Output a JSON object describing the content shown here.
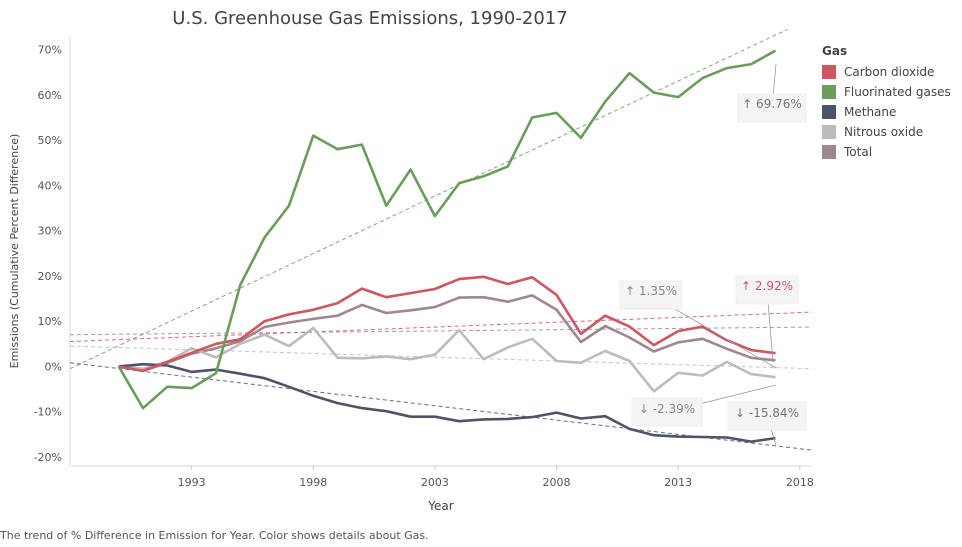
{
  "chart_data": {
    "type": "line",
    "title": "U.S. Greenhouse Gas Emissions, 1990-2017",
    "xlabel": "Year",
    "ylabel": "Emissions (Cumulative Percent Difference)",
    "xlim": [
      1988,
      2018.5
    ],
    "ylim": [
      -22,
      73
    ],
    "x_ticks": [
      1993,
      1998,
      2003,
      2008,
      2013,
      2018
    ],
    "y_ticks": [
      {
        "value": 70,
        "label": "70%"
      },
      {
        "value": 60,
        "label": "60%"
      },
      {
        "value": 50,
        "label": "50%"
      },
      {
        "value": 40,
        "label": "40%"
      },
      {
        "value": 30,
        "label": "30%"
      },
      {
        "value": 20,
        "label": "20%"
      },
      {
        "value": 10,
        "label": "10%"
      },
      {
        "value": 0,
        "label": "0%"
      },
      {
        "value": -10,
        "label": "-10%"
      },
      {
        "value": -20,
        "label": "-20%"
      }
    ],
    "grid": false,
    "legend_title": "Gas",
    "legend_position": "right",
    "x": [
      1990,
      1991,
      1992,
      1993,
      1994,
      1995,
      1996,
      1997,
      1998,
      1999,
      2000,
      2001,
      2002,
      2003,
      2004,
      2005,
      2006,
      2007,
      2008,
      2009,
      2010,
      2011,
      2012,
      2013,
      2014,
      2015,
      2016,
      2017
    ],
    "series": [
      {
        "name": "Carbon dioxide",
        "color": "#d1555f",
        "values": [
          0,
          -1,
          1,
          3,
          5,
          6,
          10,
          11.5,
          12.5,
          14,
          17.2,
          15.3,
          16.2,
          17.1,
          19.3,
          19.8,
          18.2,
          19.7,
          15.8,
          7.2,
          11.2,
          8.8,
          4.7,
          7.8,
          8.8,
          5.8,
          3.6,
          2.92
        ]
      },
      {
        "name": "Fluorinated gases",
        "color": "#6a9d5c",
        "values": [
          0,
          -9.2,
          -4.5,
          -4.8,
          -1.5,
          18,
          28.5,
          35.5,
          51,
          48,
          49,
          35.5,
          43.5,
          33.2,
          40.5,
          42,
          44.2,
          55,
          56,
          50.5,
          58.5,
          64.8,
          60.5,
          59.5,
          63.7,
          65.9,
          66.8,
          69.76
        ]
      },
      {
        "name": "Methane",
        "color": "#4e5468",
        "values": [
          0,
          0.5,
          0.2,
          -1.2,
          -0.7,
          -1.6,
          -2.6,
          -4.5,
          -6.5,
          -8.1,
          -9.2,
          -9.9,
          -11.1,
          -11.1,
          -12.1,
          -11.7,
          -11.6,
          -11.2,
          -10.2,
          -11.5,
          -11,
          -13.8,
          -15.2,
          -15.5,
          -15.6,
          -15.7,
          -16.6,
          -15.84
        ]
      },
      {
        "name": "Nitrous oxide",
        "color": "#bcbcbc",
        "values": [
          0,
          -0.5,
          1,
          4,
          2,
          5,
          7,
          4.5,
          8.5,
          1.9,
          1.8,
          2.2,
          1.6,
          2.6,
          8,
          1.6,
          4.2,
          6.1,
          1.2,
          0.8,
          3.4,
          1.2,
          -5.5,
          -1.4,
          -2,
          1,
          -1.7,
          -2.39
        ]
      },
      {
        "name": "Total",
        "color": "#a08690",
        "values": [
          0,
          -1,
          0.8,
          2.8,
          4,
          5.6,
          8.7,
          9.7,
          10.5,
          11.2,
          13.6,
          11.8,
          12.4,
          13.1,
          15.2,
          15.3,
          14.3,
          15.7,
          12.5,
          5.4,
          8.9,
          6.4,
          3.3,
          5.3,
          6.1,
          3.9,
          1.9,
          1.35
        ]
      }
    ],
    "trend_lines": [
      {
        "series": "Fluorinated gases",
        "from": [
          1988,
          -0.5
        ],
        "to": [
          2017.5,
          74.5
        ]
      },
      {
        "series": "Carbon dioxide",
        "from": [
          1988,
          5.5
        ],
        "to": [
          2018.5,
          12
        ]
      },
      {
        "series": "Total",
        "from": [
          1988,
          7
        ],
        "to": [
          2018.5,
          8.7
        ]
      },
      {
        "series": "Nitrous oxide",
        "from": [
          1988,
          4.5
        ],
        "to": [
          2018.5,
          -0.5
        ]
      },
      {
        "series": "Methane",
        "from": [
          1988,
          0.8
        ],
        "to": [
          2018.5,
          -18.5
        ]
      }
    ],
    "annotations": [
      {
        "series": "Fluorinated gases",
        "text": "↑ 69.76%"
      },
      {
        "series": "Carbon dioxide",
        "text": "↑ 2.92%"
      },
      {
        "series": "Total",
        "text": "↑ 1.35%"
      },
      {
        "series": "Nitrous oxide",
        "text": "↓ -2.39%"
      },
      {
        "series": "Methane",
        "text": "↓ -15.84%"
      }
    ]
  },
  "caption": "The trend of % Difference in Emission for Year.  Color shows details about Gas."
}
